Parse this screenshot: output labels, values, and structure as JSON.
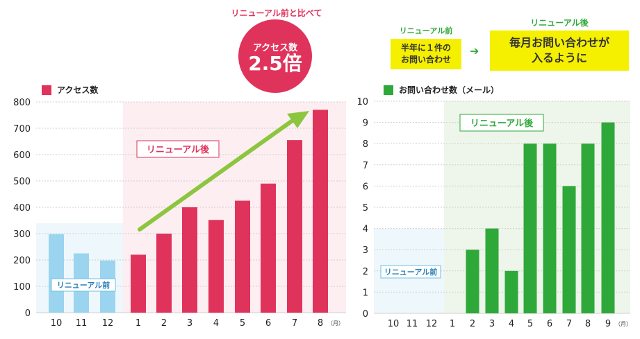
{
  "header": {
    "compare_note": "リニューアル前と比べて",
    "circle_label": "アクセス数",
    "circle_value": "2.5倍",
    "before_caption": "リニューアル前",
    "before_text": "半年に１件の\nお問い合わせ",
    "arrow": "➔",
    "after_caption": "リニューアル後",
    "after_text": "毎月お問い合わせが\n入るように"
  },
  "colors": {
    "pink": "#e0335c",
    "pink_bg": "#fdeef1",
    "blue": "#9ad4ef",
    "blue_bg": "#eef7fc",
    "green": "#2fa83a",
    "green_bg": "#eef5ea",
    "light_green_arrow": "#8cc63f"
  },
  "chart_data": [
    {
      "type": "bar",
      "legend": "アクセス数",
      "categories": [
        "10",
        "11",
        "12",
        "1",
        "2",
        "3",
        "4",
        "5",
        "6",
        "7",
        "8"
      ],
      "values": [
        298,
        225,
        198,
        220,
        300,
        400,
        352,
        425,
        490,
        655,
        770
      ],
      "ylim": [
        0,
        800
      ],
      "yticks": [
        0,
        100,
        200,
        300,
        400,
        500,
        600,
        700,
        800
      ],
      "x_unit": "（月）",
      "before_count": 3,
      "before_label": "リニューアル前",
      "after_label": "リニューアル後",
      "grid": true,
      "trend_arrow": true
    },
    {
      "type": "bar",
      "legend": "お問い合わせ数（メール）",
      "categories": [
        "10",
        "11",
        "12",
        "1",
        "2",
        "3",
        "4",
        "5",
        "6",
        "7",
        "8",
        "9"
      ],
      "values": [
        0,
        0,
        0,
        0,
        3,
        4,
        2,
        8,
        8,
        6,
        8,
        9
      ],
      "ylim": [
        0,
        10
      ],
      "yticks": [
        0,
        1,
        2,
        3,
        4,
        5,
        6,
        7,
        8,
        9,
        10
      ],
      "x_unit": "（月）",
      "before_count": 3,
      "before_label": "リニューアル前",
      "after_label": "リニューアル後",
      "grid": true
    }
  ]
}
